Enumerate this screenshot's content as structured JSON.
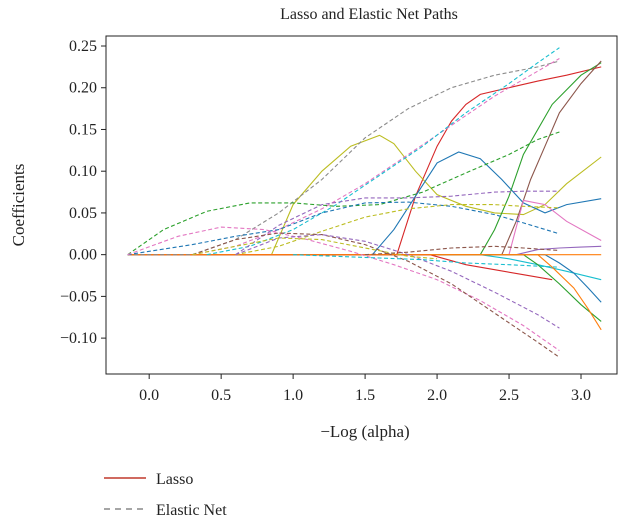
{
  "chart_data": {
    "type": "line",
    "title": "Lasso and Elastic Net Paths",
    "xlabel": "−Log (alpha)",
    "ylabel": "Coefficients",
    "xlim": [
      -0.3,
      3.25
    ],
    "ylim": [
      -0.143,
      0.262
    ],
    "xticks": [
      0.0,
      0.5,
      1.0,
      1.5,
      2.0,
      2.5,
      3.0
    ],
    "xtick_labels": [
      "0.0",
      "0.5",
      "1.0",
      "1.5",
      "2.0",
      "2.5",
      "3.0"
    ],
    "yticks": [
      0.25,
      0.2,
      0.15,
      0.1,
      0.05,
      0.0,
      -0.05,
      -0.1
    ],
    "ytick_labels": [
      "0.25",
      "0.20",
      "0.15",
      "0.10",
      "0.05",
      "0.00",
      "−0.05",
      "−0.10"
    ],
    "grid": false,
    "legend": {
      "position": "below",
      "entries": [
        {
          "label": "Lasso",
          "style": "solid",
          "color": "#c0392b"
        },
        {
          "label": "Elastic Net",
          "style": "dashed",
          "color": "#888888"
        }
      ]
    },
    "series": [
      {
        "method": "lasso",
        "color": "#d62728",
        "x": [
          -0.15,
          1.72,
          1.85,
          2.0,
          2.1,
          2.2,
          2.3,
          2.5,
          2.7,
          2.9,
          3.14
        ],
        "y": [
          0,
          0,
          0.07,
          0.13,
          0.16,
          0.18,
          0.192,
          0.2,
          0.208,
          0.215,
          0.225
        ]
      },
      {
        "method": "lasso",
        "color": "#bcbd22",
        "x": [
          -0.15,
          0.85,
          1.0,
          1.2,
          1.4,
          1.6,
          1.7,
          1.85,
          2.0,
          2.2,
          2.4,
          2.6,
          2.75,
          2.9,
          3.14
        ],
        "y": [
          0,
          0,
          0.06,
          0.1,
          0.13,
          0.143,
          0.133,
          0.1,
          0.072,
          0.058,
          0.05,
          0.048,
          0.06,
          0.085,
          0.117
        ]
      },
      {
        "method": "lasso",
        "color": "#1f77b4",
        "x": [
          -0.15,
          1.55,
          1.7,
          1.85,
          2.0,
          2.15,
          2.3,
          2.45,
          2.6,
          2.75,
          2.9,
          3.14
        ],
        "y": [
          0,
          0,
          0.03,
          0.07,
          0.11,
          0.123,
          0.115,
          0.09,
          0.062,
          0.05,
          0.06,
          0.067
        ]
      },
      {
        "method": "lasso",
        "color": "#2ca02c",
        "x": [
          -0.15,
          2.3,
          2.4,
          2.5,
          2.6,
          2.8,
          3.0,
          3.14
        ],
        "y": [
          0,
          0,
          0.03,
          0.07,
          0.12,
          0.18,
          0.215,
          0.23
        ]
      },
      {
        "method": "lasso",
        "color": "#8c564b",
        "x": [
          -0.15,
          2.45,
          2.55,
          2.65,
          2.75,
          2.85,
          3.0,
          3.14
        ],
        "y": [
          0,
          0,
          0.04,
          0.09,
          0.13,
          0.17,
          0.205,
          0.232
        ]
      },
      {
        "method": "lasso",
        "color": "#e377c2",
        "x": [
          -0.15,
          2.5,
          2.6,
          2.75,
          2.9,
          3.14
        ],
        "y": [
          0,
          0,
          0.065,
          0.06,
          0.04,
          0.017
        ]
      },
      {
        "method": "lasso",
        "color": "#9467bd",
        "x": [
          -0.15,
          2.55,
          2.7,
          2.85,
          3.0,
          3.14
        ],
        "y": [
          0,
          0,
          0.006,
          0.008,
          0.009,
          0.01
        ]
      },
      {
        "method": "lasso",
        "color": "#17becf",
        "x": [
          -0.15,
          2.3,
          2.5,
          2.7,
          2.9,
          3.14
        ],
        "y": [
          0,
          0,
          -0.005,
          -0.012,
          -0.02,
          -0.03
        ]
      },
      {
        "method": "lasso",
        "color": "#1f77b4",
        "x": [
          -0.15,
          2.75,
          2.85,
          2.95,
          3.05,
          3.14
        ],
        "y": [
          0,
          0,
          -0.01,
          -0.022,
          -0.04,
          -0.057
        ]
      },
      {
        "method": "lasso",
        "color": "#2ca02c",
        "x": [
          -0.15,
          2.6,
          2.7,
          2.85,
          3.0,
          3.14
        ],
        "y": [
          0,
          0,
          -0.012,
          -0.035,
          -0.06,
          -0.08
        ]
      },
      {
        "method": "lasso",
        "color": "#ff7f0e",
        "x": [
          -0.15,
          2.7,
          2.8,
          2.95,
          3.05,
          3.14
        ],
        "y": [
          0,
          0,
          -0.015,
          -0.04,
          -0.065,
          -0.09
        ]
      },
      {
        "method": "lasso",
        "color": "#d62728",
        "x": [
          -0.15,
          1.95,
          2.2,
          2.4,
          2.6,
          2.8
        ],
        "y": [
          0,
          0,
          -0.012,
          -0.018,
          -0.024,
          -0.03
        ]
      },
      {
        "method": "lasso",
        "color": "#ff7f0e",
        "x": [
          -0.15,
          3.14
        ],
        "y": [
          0,
          0
        ]
      },
      {
        "method": "elastic",
        "color": "#8c8c8c",
        "x": [
          -0.15,
          0.0,
          0.3,
          0.6,
          0.9,
          1.2,
          1.5,
          1.8,
          2.1,
          2.4,
          2.7,
          2.85
        ],
        "y": [
          0,
          0.0,
          0.0,
          0.018,
          0.05,
          0.09,
          0.14,
          0.175,
          0.2,
          0.215,
          0.225,
          0.232
        ]
      },
      {
        "method": "elastic",
        "color": "#e377c2",
        "x": [
          0.3,
          0.6,
          0.9,
          1.2,
          1.5,
          1.8,
          2.1,
          2.4,
          2.7,
          2.85
        ],
        "y": [
          0,
          0.01,
          0.03,
          0.055,
          0.085,
          0.12,
          0.155,
          0.19,
          0.22,
          0.235
        ]
      },
      {
        "method": "elastic",
        "color": "#17becf",
        "x": [
          0.4,
          0.7,
          1.0,
          1.3,
          1.6,
          1.9,
          2.2,
          2.5,
          2.7,
          2.85
        ],
        "y": [
          0,
          0.01,
          0.03,
          0.06,
          0.095,
          0.13,
          0.17,
          0.205,
          0.23,
          0.248
        ]
      },
      {
        "method": "elastic",
        "color": "#2ca02c",
        "x": [
          -0.15,
          0.1,
          0.4,
          0.7,
          1.0,
          1.3,
          1.6,
          1.9,
          2.2,
          2.5,
          2.7,
          2.85
        ],
        "y": [
          0,
          0.03,
          0.052,
          0.062,
          0.062,
          0.058,
          0.06,
          0.075,
          0.098,
          0.12,
          0.138,
          0.147
        ]
      },
      {
        "method": "elastic",
        "color": "#9467bd",
        "x": [
          0.6,
          0.9,
          1.2,
          1.5,
          1.8,
          2.1,
          2.4,
          2.6,
          2.85
        ],
        "y": [
          0,
          0.035,
          0.06,
          0.068,
          0.068,
          0.07,
          0.075,
          0.076,
          0.076
        ]
      },
      {
        "method": "elastic",
        "color": "#1f77b4",
        "x": [
          -0.15,
          0.3,
          0.6,
          0.9,
          1.2,
          1.5,
          1.8,
          2.1,
          2.4,
          2.6,
          2.85
        ],
        "y": [
          0,
          0.012,
          0.022,
          0.03,
          0.05,
          0.062,
          0.063,
          0.058,
          0.048,
          0.038,
          0.025
        ]
      },
      {
        "method": "elastic",
        "color": "#bcbd22",
        "x": [
          0.6,
          0.9,
          1.2,
          1.5,
          1.8,
          2.1,
          2.4,
          2.6,
          2.85
        ],
        "y": [
          0,
          0.01,
          0.028,
          0.045,
          0.055,
          0.06,
          0.06,
          0.058,
          0.056
        ]
      },
      {
        "method": "elastic",
        "color": "#e377c2",
        "x": [
          -0.15,
          0.2,
          0.5,
          0.8,
          1.1,
          1.4,
          1.7,
          2.0,
          2.3,
          2.6,
          2.85
        ],
        "y": [
          0,
          0.022,
          0.033,
          0.03,
          0.018,
          0.004,
          -0.012,
          -0.03,
          -0.055,
          -0.085,
          -0.115
        ]
      },
      {
        "method": "elastic",
        "color": "#8c564b",
        "x": [
          0.3,
          0.6,
          0.9,
          1.2,
          1.5,
          1.8,
          2.1,
          2.4,
          2.7,
          2.85
        ],
        "y": [
          0,
          0.018,
          0.026,
          0.024,
          0.012,
          -0.008,
          -0.035,
          -0.07,
          -0.105,
          -0.123
        ]
      },
      {
        "method": "elastic",
        "color": "#9467bd",
        "x": [
          0.6,
          0.9,
          1.2,
          1.5,
          1.8,
          2.1,
          2.4,
          2.7,
          2.85
        ],
        "y": [
          0,
          0.02,
          0.024,
          0.016,
          0.0,
          -0.02,
          -0.045,
          -0.072,
          -0.088
        ]
      },
      {
        "method": "elastic",
        "color": "#bcbd22",
        "x": [
          0.3,
          0.6,
          0.9,
          1.2,
          1.5,
          1.8,
          2.0
        ],
        "y": [
          0,
          0.01,
          0.02,
          0.018,
          0.008,
          -0.002,
          -0.005
        ]
      },
      {
        "method": "elastic",
        "color": "#8c564b",
        "x": [
          1.5,
          1.8,
          2.1,
          2.4,
          2.6,
          2.85
        ],
        "y": [
          0,
          0.003,
          0.008,
          0.01,
          0.008,
          0.005
        ]
      },
      {
        "method": "elastic",
        "color": "#17becf",
        "x": [
          1.0,
          1.3,
          1.6,
          1.9,
          2.2,
          2.5,
          2.85
        ],
        "y": [
          0,
          -0.002,
          -0.004,
          -0.006,
          -0.01,
          -0.012,
          -0.015
        ]
      }
    ]
  }
}
